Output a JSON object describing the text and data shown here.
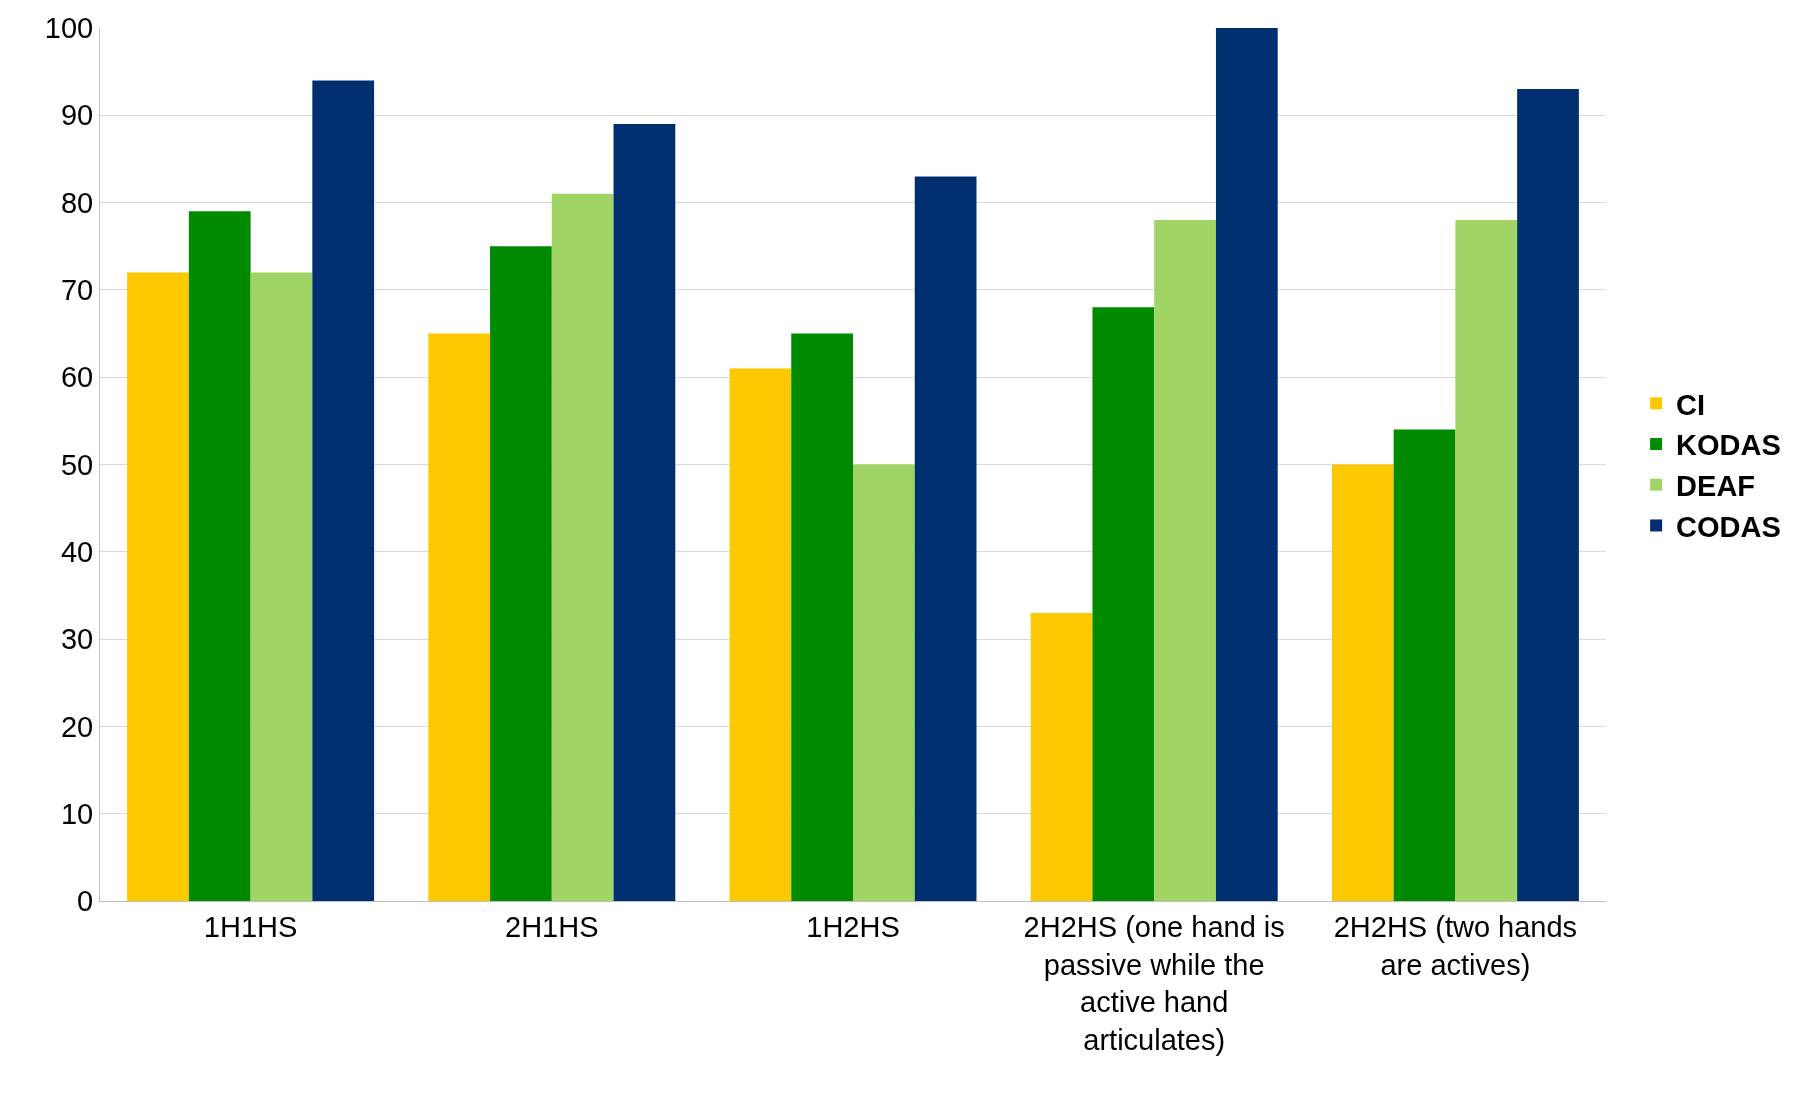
{
  "chart_data": {
    "type": "bar",
    "categories": [
      "1H1HS",
      "2H1HS",
      "1H2HS",
      "2H2HS (one hand is passive while the active hand articulates)",
      "2H2HS (two hands are actives)"
    ],
    "series": [
      {
        "name": "CI",
        "color": "#fcc800",
        "values": [
          72,
          65,
          61,
          33,
          50
        ]
      },
      {
        "name": "KODAS",
        "color": "#008a00",
        "values": [
          79,
          75,
          65,
          68,
          54
        ]
      },
      {
        "name": "DEAF",
        "color": "#a0d465",
        "values": [
          72,
          81,
          50,
          78,
          78
        ]
      },
      {
        "name": "CODAS",
        "color": "#002f6f",
        "values": [
          94,
          89,
          83,
          100,
          93
        ]
      }
    ],
    "ylim": [
      0,
      100
    ],
    "yticks": [
      0,
      10,
      20,
      30,
      40,
      50,
      60,
      70,
      80,
      90,
      100
    ],
    "grid": "y",
    "legend": "right"
  }
}
